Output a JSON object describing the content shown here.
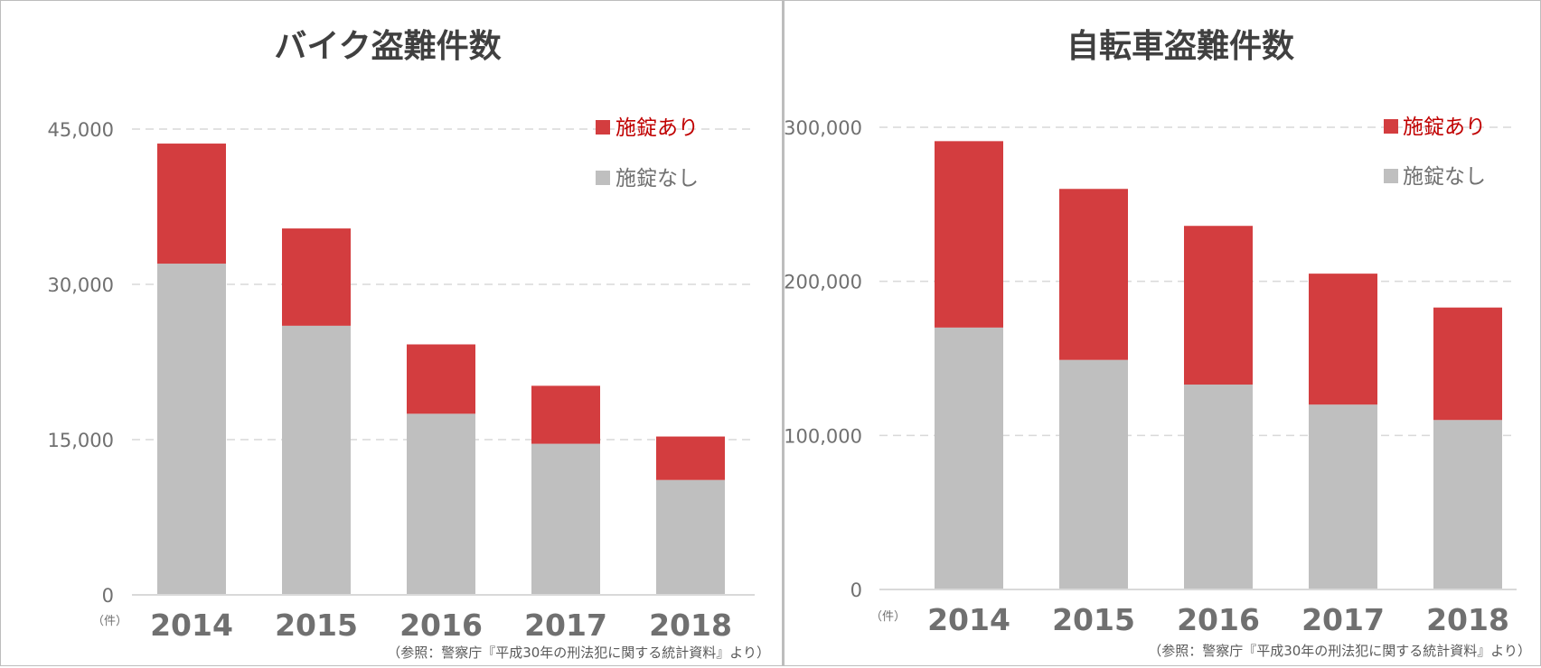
{
  "chart_data": [
    {
      "type": "bar",
      "stacked": true,
      "title": "バイク盗難件数",
      "categories": [
        "2014",
        "2015",
        "2016",
        "2017",
        "2018"
      ],
      "series": [
        {
          "name": "施錠なし",
          "color": "#bfbfbf",
          "values": [
            32000,
            26000,
            17500,
            14600,
            11100
          ]
        },
        {
          "name": "施錠あり",
          "color": "#d33d3f",
          "values": [
            11600,
            9400,
            6700,
            5600,
            4200
          ]
        }
      ],
      "ylim": [
        0,
        45000
      ],
      "yticks": [
        "0",
        "15,000",
        "30,000",
        "45,000"
      ],
      "ytick_values": [
        0,
        15000,
        30000,
        45000
      ],
      "unit_label": "（件）",
      "grid": true,
      "legend_position": "top-right",
      "source": "（参照：警察庁『平成30年の刑法犯に関する統計資料』より）"
    },
    {
      "type": "bar",
      "stacked": true,
      "title": "自転車盗難件数",
      "categories": [
        "2014",
        "2015",
        "2016",
        "2017",
        "2018"
      ],
      "series": [
        {
          "name": "施錠なし",
          "color": "#bfbfbf",
          "values": [
            170000,
            149000,
            133000,
            120000,
            110000
          ]
        },
        {
          "name": "施錠あり",
          "color": "#d33d3f",
          "values": [
            121000,
            111000,
            103000,
            85000,
            73000
          ]
        }
      ],
      "ylim": [
        0,
        300000
      ],
      "yticks": [
        "0",
        "100,000",
        "200,000",
        "300,000"
      ],
      "ytick_values": [
        0,
        100000,
        200000,
        300000
      ],
      "unit_label": "（件）",
      "grid": true,
      "legend_position": "top-right",
      "source": "（参照：警察庁『平成30年の刑法犯に関する統計資料』より）"
    }
  ]
}
